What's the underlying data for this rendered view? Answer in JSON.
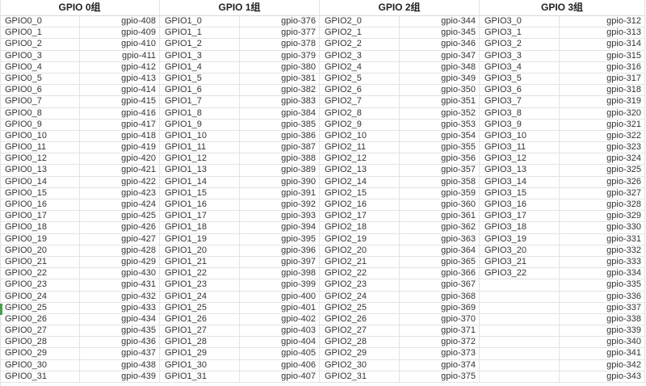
{
  "sheet": {
    "groups": [
      {
        "title": "GPIO 0组",
        "rows": [
          [
            "GPIO0_0",
            "gpio-408"
          ],
          [
            "GPIO0_1",
            "gpio-409"
          ],
          [
            "GPIO0_2",
            "gpio-410"
          ],
          [
            "GPIO0_3",
            "gpio-411"
          ],
          [
            "GPIO0_4",
            "gpio-412"
          ],
          [
            "GPIO0_5",
            "gpio-413"
          ],
          [
            "GPIO0_6",
            "gpio-414"
          ],
          [
            "GPIO0_7",
            "gpio-415"
          ],
          [
            "GPIO0_8",
            "gpio-416"
          ],
          [
            "GPIO0_9",
            "gpio-417"
          ],
          [
            "GPIO0_10",
            "gpio-418"
          ],
          [
            "GPIO0_11",
            "gpio-419"
          ],
          [
            "GPIO0_12",
            "gpio-420"
          ],
          [
            "GPIO0_13",
            "gpio-421"
          ],
          [
            "GPIO0_14",
            "gpio-422"
          ],
          [
            "GPIO0_15",
            "gpio-423"
          ],
          [
            "GPIO0_16",
            "gpio-424"
          ],
          [
            "GPIO0_17",
            "gpio-425"
          ],
          [
            "GPIO0_18",
            "gpio-426"
          ],
          [
            "GPIO0_19",
            "gpio-427"
          ],
          [
            "GPIO0_20",
            "gpio-428"
          ],
          [
            "GPIO0_21",
            "gpio-429"
          ],
          [
            "GPIO0_22",
            "gpio-430"
          ],
          [
            "GPIO0_23",
            "gpio-431"
          ],
          [
            "GPIO0_24",
            "gpio-432"
          ],
          [
            "GPIO0_25",
            "gpio-433"
          ],
          [
            "GPIO0_26",
            "gpio-434"
          ],
          [
            "GPIO0_27",
            "gpio-435"
          ],
          [
            "GPIO0_28",
            "gpio-436"
          ],
          [
            "GPIO0_29",
            "gpio-437"
          ],
          [
            "GPIO0_30",
            "gpio-438"
          ],
          [
            "GPIO0_31",
            "gpio-439"
          ]
        ]
      },
      {
        "title": "GPIO 1组",
        "rows": [
          [
            "GPIO1_0",
            "gpio-376"
          ],
          [
            "GPIO1_1",
            "gpio-377"
          ],
          [
            "GPIO1_2",
            "gpio-378"
          ],
          [
            "GPIO1_3",
            "gpio-379"
          ],
          [
            "GPIO1_4",
            "gpio-380"
          ],
          [
            "GPIO1_5",
            "gpio-381"
          ],
          [
            "GPIO1_6",
            "gpio-382"
          ],
          [
            "GPIO1_7",
            "gpio-383"
          ],
          [
            "GPIO1_8",
            "gpio-384"
          ],
          [
            "GPIO1_9",
            "gpio-385"
          ],
          [
            "GPIO1_10",
            "gpio-386"
          ],
          [
            "GPIO1_11",
            "gpio-387"
          ],
          [
            "GPIO1_12",
            "gpio-388"
          ],
          [
            "GPIO1_13",
            "gpio-389"
          ],
          [
            "GPIO1_14",
            "gpio-390"
          ],
          [
            "GPIO1_15",
            "gpio-391"
          ],
          [
            "GPIO1_16",
            "gpio-392"
          ],
          [
            "GPIO1_17",
            "gpio-393"
          ],
          [
            "GPIO1_18",
            "gpio-394"
          ],
          [
            "GPIO1_19",
            "gpio-395"
          ],
          [
            "GPIO1_20",
            "gpio-396"
          ],
          [
            "GPIO1_21",
            "gpio-397"
          ],
          [
            "GPIO1_22",
            "gpio-398"
          ],
          [
            "GPIO1_23",
            "gpio-399"
          ],
          [
            "GPIO1_24",
            "gpio-400"
          ],
          [
            "GPIO1_25",
            "gpio-401"
          ],
          [
            "GPIO1_26",
            "gpio-402"
          ],
          [
            "GPIO1_27",
            "gpio-403"
          ],
          [
            "GPIO1_28",
            "gpio-404"
          ],
          [
            "GPIO1_29",
            "gpio-405"
          ],
          [
            "GPIO1_30",
            "gpio-406"
          ],
          [
            "GPIO1_31",
            "gpio-407"
          ]
        ]
      },
      {
        "title": "GPIO 2组",
        "rows": [
          [
            "GPIO2_0",
            "gpio-344"
          ],
          [
            "GPIO2_1",
            "gpio-345"
          ],
          [
            "GPIO2_2",
            "gpio-346"
          ],
          [
            "GPIO2_3",
            "gpio-347"
          ],
          [
            "GPIO2_4",
            "gpio-348"
          ],
          [
            "GPIO2_5",
            "gpio-349"
          ],
          [
            "GPIO2_6",
            "gpio-350"
          ],
          [
            "GPIO2_7",
            "gpio-351"
          ],
          [
            "GPIO2_8",
            "gpio-352"
          ],
          [
            "GPIO2_9",
            "gpio-353"
          ],
          [
            "GPIO2_10",
            "gpio-354"
          ],
          [
            "GPIO2_11",
            "gpio-355"
          ],
          [
            "GPIO2_12",
            "gpio-356"
          ],
          [
            "GPIO2_13",
            "gpio-357"
          ],
          [
            "GPIO2_14",
            "gpio-358"
          ],
          [
            "GPIO2_15",
            "gpio-359"
          ],
          [
            "GPIO2_16",
            "gpio-360"
          ],
          [
            "GPIO2_17",
            "gpio-361"
          ],
          [
            "GPIO2_18",
            "gpio-362"
          ],
          [
            "GPIO2_19",
            "gpio-363"
          ],
          [
            "GPIO2_20",
            "gpio-364"
          ],
          [
            "GPIO2_21",
            "gpio-365"
          ],
          [
            "GPIO2_22",
            "gpio-366"
          ],
          [
            "GPIO2_23",
            "gpio-367"
          ],
          [
            "GPIO2_24",
            "gpio-368"
          ],
          [
            "GPIO2_25",
            "gpio-369"
          ],
          [
            "GPIO2_26",
            "gpio-370"
          ],
          [
            "GPIO2_27",
            "gpio-371"
          ],
          [
            "GPIO2_28",
            "gpio-372"
          ],
          [
            "GPIO2_29",
            "gpio-373"
          ],
          [
            "GPIO2_30",
            "gpio-374"
          ],
          [
            "GPIO2_31",
            "gpio-375"
          ]
        ]
      },
      {
        "title": "GPIO 3组",
        "rows": [
          [
            "GPIO3_0",
            "gpio-312"
          ],
          [
            "GPIO3_1",
            "gpio-313"
          ],
          [
            "GPIO3_2",
            "gpio-314"
          ],
          [
            "GPIO3_3",
            "gpio-315"
          ],
          [
            "GPIO3_4",
            "gpio-316"
          ],
          [
            "GPIO3_5",
            "gpio-317"
          ],
          [
            "GPIO3_6",
            "gpio-318"
          ],
          [
            "GPIO3_7",
            "gpio-319"
          ],
          [
            "GPIO3_8",
            "gpio-320"
          ],
          [
            "GPIO3_9",
            "gpio-321"
          ],
          [
            "GPIO3_10",
            "gpio-322"
          ],
          [
            "GPIO3_11",
            "gpio-323"
          ],
          [
            "GPIO3_12",
            "gpio-324"
          ],
          [
            "GPIO3_13",
            "gpio-325"
          ],
          [
            "GPIO3_14",
            "gpio-326"
          ],
          [
            "GPIO3_15",
            "gpio-327"
          ],
          [
            "GPIO3_16",
            "gpio-328"
          ],
          [
            "GPIO3_17",
            "gpio-329"
          ],
          [
            "GPIO3_18",
            "gpio-330"
          ],
          [
            "GPIO3_19",
            "gpio-331"
          ],
          [
            "GPIO3_20",
            "gpio-332"
          ],
          [
            "GPIO3_21",
            "gpio-333"
          ],
          [
            "GPIO3_22",
            "gpio-334"
          ],
          [
            "",
            "gpio-335"
          ],
          [
            "",
            "gpio-336"
          ],
          [
            "",
            "gpio-337"
          ],
          [
            "",
            "gpio-338"
          ],
          [
            "",
            "gpio-339"
          ],
          [
            "",
            "gpio-340"
          ],
          [
            "",
            "gpio-341"
          ],
          [
            "",
            "gpio-342"
          ],
          [
            "",
            "gpio-343"
          ]
        ]
      }
    ]
  }
}
